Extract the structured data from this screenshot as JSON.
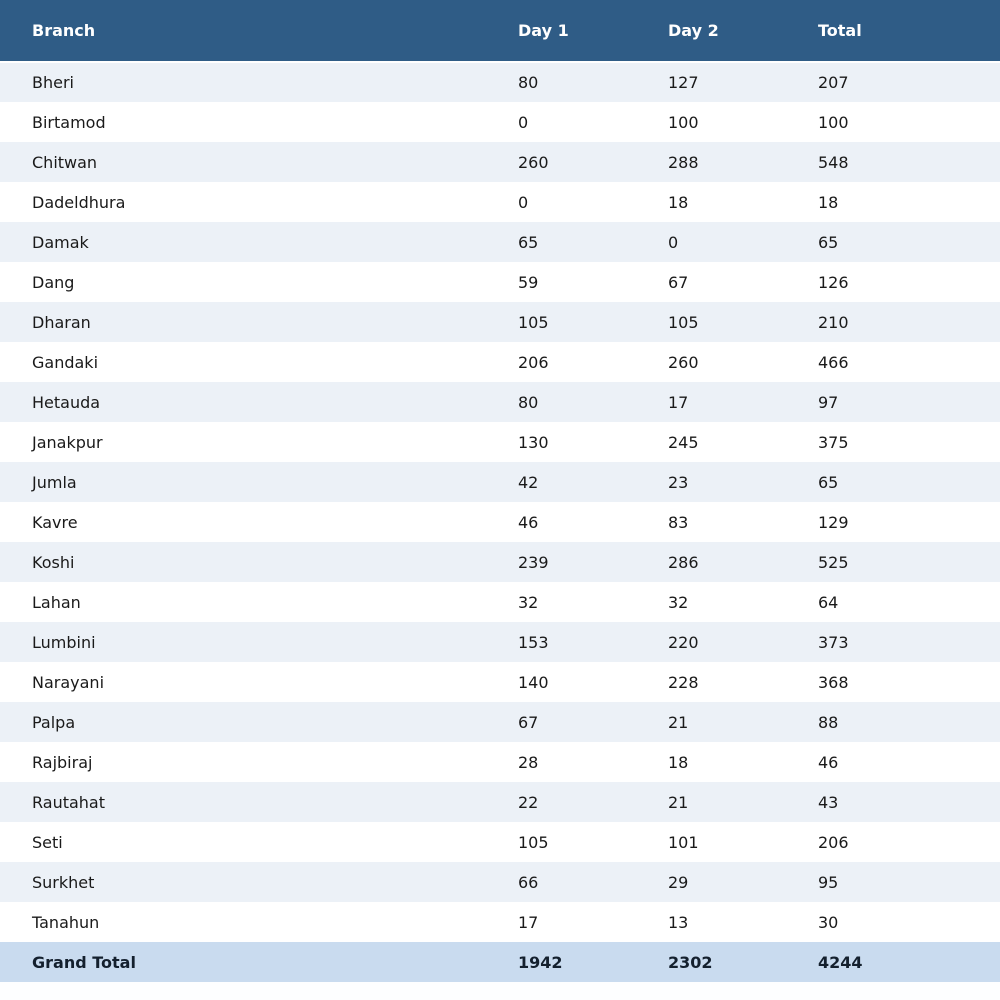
{
  "table": {
    "columns": [
      "Branch",
      "Day 1",
      "Day 2",
      "Total"
    ],
    "rows": [
      {
        "branch": "Bheri",
        "day1": "80",
        "day2": "127",
        "total": "207"
      },
      {
        "branch": "Birtamod",
        "day1": "0",
        "day2": "100",
        "total": "100"
      },
      {
        "branch": "Chitwan",
        "day1": "260",
        "day2": "288",
        "total": "548"
      },
      {
        "branch": "Dadeldhura",
        "day1": "0",
        "day2": "18",
        "total": "18"
      },
      {
        "branch": "Damak",
        "day1": "65",
        "day2": "0",
        "total": "65"
      },
      {
        "branch": "Dang",
        "day1": "59",
        "day2": "67",
        "total": "126"
      },
      {
        "branch": "Dharan",
        "day1": "105",
        "day2": "105",
        "total": "210"
      },
      {
        "branch": "Gandaki",
        "day1": "206",
        "day2": "260",
        "total": "466"
      },
      {
        "branch": "Hetauda",
        "day1": "80",
        "day2": "17",
        "total": "97"
      },
      {
        "branch": "Janakpur",
        "day1": "130",
        "day2": "245",
        "total": "375"
      },
      {
        "branch": "Jumla",
        "day1": "42",
        "day2": "23",
        "total": "65"
      },
      {
        "branch": "Kavre",
        "day1": "46",
        "day2": "83",
        "total": "129"
      },
      {
        "branch": "Koshi",
        "day1": "239",
        "day2": "286",
        "total": "525"
      },
      {
        "branch": "Lahan",
        "day1": "32",
        "day2": "32",
        "total": "64"
      },
      {
        "branch": "Lumbini",
        "day1": "153",
        "day2": "220",
        "total": "373"
      },
      {
        "branch": "Narayani",
        "day1": "140",
        "day2": "228",
        "total": "368"
      },
      {
        "branch": "Palpa",
        "day1": "67",
        "day2": "21",
        "total": "88"
      },
      {
        "branch": "Rajbiraj",
        "day1": "28",
        "day2": "18",
        "total": "46"
      },
      {
        "branch": "Rautahat",
        "day1": "22",
        "day2": "21",
        "total": "43"
      },
      {
        "branch": "Seti",
        "day1": "105",
        "day2": "101",
        "total": "206"
      },
      {
        "branch": "Surkhet",
        "day1": "66",
        "day2": "29",
        "total": "95"
      },
      {
        "branch": "Tanahun",
        "day1": "17",
        "day2": "13",
        "total": "30"
      }
    ],
    "grand_total": {
      "label": "Grand Total",
      "day1": "1942",
      "day2": "2302",
      "total": "4244"
    }
  },
  "colors": {
    "header_bg": "#2F5C86",
    "header_text": "#FFFFFF",
    "stripe_bg": "#ECF1F7",
    "row_bg": "#FFFFFF",
    "grand_total_bg": "#C9DBEF",
    "body_text": "#1A1A1A"
  }
}
